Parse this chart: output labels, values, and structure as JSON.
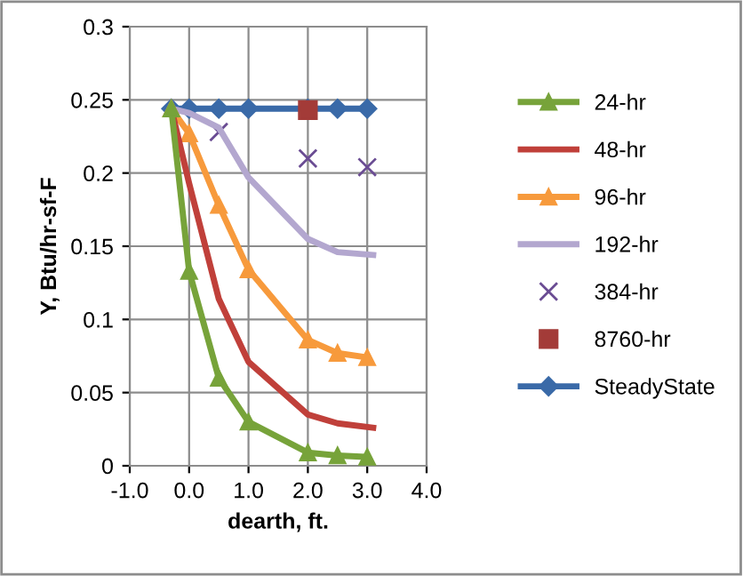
{
  "chart_data": {
    "type": "line",
    "xlabel": "dearth, ft.",
    "ylabel": "Y, Btu/hr-sf-F",
    "xlim": [
      -1.0,
      4.0
    ],
    "xticks": [
      {
        "value": -1,
        "label": "-1.0"
      },
      {
        "value": 0,
        "label": "0.0"
      },
      {
        "value": 1,
        "label": "1.0"
      },
      {
        "value": 2,
        "label": "2.0"
      },
      {
        "value": 3,
        "label": "3.0"
      },
      {
        "value": 4,
        "label": "4.0"
      }
    ],
    "ylim": [
      0,
      0.3
    ],
    "yticks": [
      0,
      0.05,
      0.1,
      0.15,
      0.2,
      0.25,
      0.3
    ],
    "grid": true,
    "legend": "right",
    "series": [
      {
        "name": "24-hr",
        "color": "#77a33a",
        "marker": "triangle",
        "x": [
          -0.3,
          0,
          0.5,
          1,
          2,
          2.5,
          3
        ],
        "values": [
          0.244,
          0.133,
          0.06,
          0.03,
          0.009,
          0.007,
          0.006
        ]
      },
      {
        "name": "48-hr",
        "color": "#c0403a",
        "marker": "none",
        "x": [
          -0.3,
          0,
          0.5,
          1,
          2,
          2.5,
          3.1
        ],
        "values": [
          0.244,
          0.193,
          0.114,
          0.071,
          0.035,
          0.029,
          0.026
        ]
      },
      {
        "name": "96-hr",
        "color": "#f79a3c",
        "marker": "triangle",
        "x": [
          -0.3,
          0,
          0.5,
          1,
          2,
          2.5,
          3
        ],
        "values": [
          0.244,
          0.227,
          0.178,
          0.134,
          0.086,
          0.077,
          0.074
        ]
      },
      {
        "name": "192-hr",
        "color": "#b3a7cf",
        "marker": "none",
        "x": [
          -0.3,
          0,
          0.5,
          1,
          2,
          2.5,
          3.1
        ],
        "values": [
          0.244,
          0.241,
          0.231,
          0.197,
          0.155,
          0.146,
          0.144
        ]
      },
      {
        "name": "384-hr",
        "color": "#6a4c93",
        "marker": "cross",
        "type": "scatter",
        "x": [
          0.5,
          2,
          3
        ],
        "values": [
          0.228,
          0.21,
          0.204
        ]
      },
      {
        "name": "8760-hr",
        "color": "#a33b38",
        "marker": "square",
        "type": "scatter",
        "x": [
          2
        ],
        "values": [
          0.243
        ]
      },
      {
        "name": "SteadyState",
        "color": "#3a6aa8",
        "marker": "diamond",
        "x": [
          -0.3,
          0,
          0.5,
          1,
          2,
          2.5,
          3
        ],
        "values": [
          0.244,
          0.244,
          0.244,
          0.244,
          0.244,
          0.244,
          0.244
        ]
      }
    ]
  }
}
